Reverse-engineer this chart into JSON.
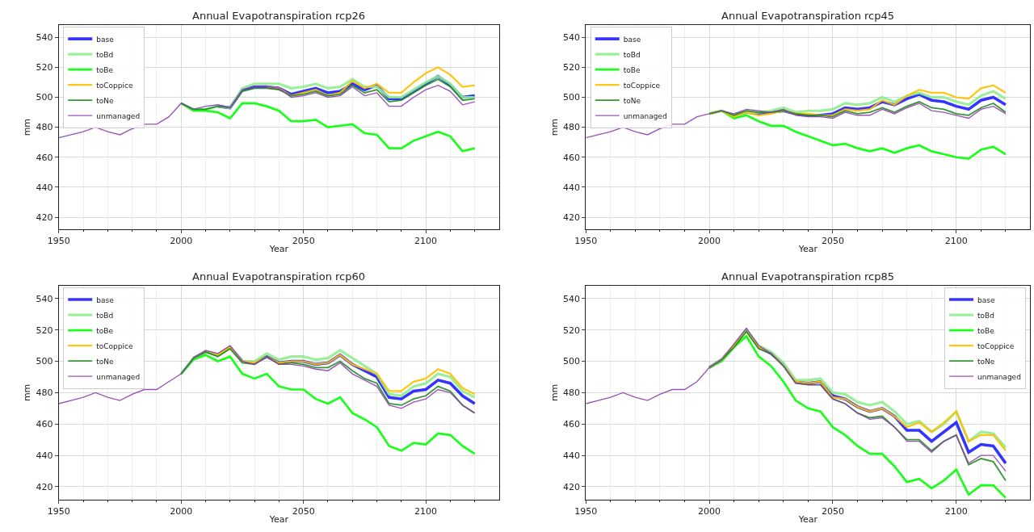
{
  "chart_data": [
    {
      "type": "line",
      "title": "Annual Evapotranspiration rcp26",
      "xlabel": "Year",
      "ylabel": "mm",
      "x": [
        1950,
        1955,
        1960,
        1965,
        1970,
        1975,
        1980,
        1985,
        1990,
        1995,
        2000,
        2005,
        2010,
        2015,
        2020,
        2025,
        2030,
        2035,
        2040,
        2045,
        2050,
        2055,
        2060,
        2065,
        2070,
        2075,
        2080,
        2085,
        2090,
        2095,
        2100,
        2105,
        2110,
        2115,
        2120
      ],
      "xlim": [
        1950,
        2130
      ],
      "xticks": [
        1950,
        {
          "value": 1960,
          "label": null
        },
        {
          "value": 1970,
          "label": null
        },
        {
          "value": 1980,
          "label": null
        },
        {
          "value": 1990,
          "label": null
        },
        2000,
        {
          "value": 2010,
          "label": null
        },
        {
          "value": 2020,
          "label": null
        },
        {
          "value": 2030,
          "label": null
        },
        {
          "value": 2040,
          "label": null
        },
        2050,
        {
          "value": 2060,
          "label": null
        },
        {
          "value": 2070,
          "label": null
        },
        {
          "value": 2080,
          "label": null
        },
        {
          "value": 2090,
          "label": null
        },
        2100,
        {
          "value": 2110,
          "label": null
        },
        {
          "value": 2120,
          "label": null
        }
      ],
      "ylim": [
        412,
        548
      ],
      "yticks": [
        420,
        440,
        460,
        480,
        500,
        520,
        540
      ],
      "grid": true,
      "legend": "top left",
      "marker": "none",
      "line_style": "solid",
      "series": [
        {
          "name": "base",
          "color": "#1f1fff",
          "values": [
            null,
            null,
            null,
            null,
            null,
            null,
            null,
            null,
            null,
            null,
            null,
            null,
            null,
            494,
            493,
            505,
            507,
            507,
            506,
            502,
            504,
            506,
            503,
            504,
            509,
            505,
            508,
            499,
            499,
            504,
            509,
            514,
            508,
            500,
            501
          ]
        },
        {
          "name": "toBd",
          "color": "#90ee90",
          "values": [
            null,
            null,
            null,
            null,
            null,
            null,
            null,
            null,
            null,
            null,
            496,
            492,
            492,
            494,
            493,
            506,
            509,
            509,
            509,
            506,
            507,
            509,
            506,
            507,
            512,
            507,
            507,
            500,
            500,
            505,
            510,
            514,
            509,
            500,
            500
          ]
        },
        {
          "name": "toBe",
          "color": "#00ff00",
          "values": [
            null,
            null,
            null,
            null,
            null,
            null,
            null,
            null,
            null,
            null,
            496,
            491,
            491,
            490,
            486,
            496,
            496,
            494,
            491,
            484,
            484,
            485,
            480,
            481,
            482,
            476,
            475,
            466,
            466,
            471,
            474,
            477,
            474,
            464,
            466
          ]
        },
        {
          "name": "toCoppice",
          "color": "#ffc000",
          "values": [
            null,
            null,
            null,
            null,
            null,
            null,
            null,
            null,
            null,
            null,
            null,
            null,
            null,
            null,
            null,
            null,
            null,
            507,
            506,
            501,
            503,
            505,
            501,
            503,
            511,
            506,
            509,
            503,
            503,
            510,
            516,
            520,
            515,
            507,
            508
          ]
        },
        {
          "name": "toNe",
          "color": "#228b22",
          "values": [
            null,
            null,
            null,
            null,
            null,
            null,
            null,
            null,
            null,
            null,
            496,
            492,
            492,
            494,
            493,
            504,
            506,
            506,
            505,
            501,
            502,
            504,
            501,
            502,
            508,
            503,
            505,
            497,
            498,
            503,
            508,
            512,
            507,
            498,
            499
          ]
        },
        {
          "name": "unmanaged",
          "color": "#8e3fb0",
          "values": [
            473,
            475,
            477,
            480,
            477,
            475,
            479,
            482,
            482,
            487,
            496,
            492,
            494,
            495,
            493,
            505,
            507,
            507,
            506,
            500,
            501,
            503,
            500,
            501,
            507,
            501,
            503,
            494,
            494,
            500,
            505,
            508,
            504,
            495,
            497
          ]
        }
      ]
    },
    {
      "type": "line",
      "title": "Annual Evapotranspiration rcp45",
      "xlabel": "Year",
      "ylabel": "mm",
      "x": [
        1950,
        1955,
        1960,
        1965,
        1970,
        1975,
        1980,
        1985,
        1990,
        1995,
        2000,
        2005,
        2010,
        2015,
        2020,
        2025,
        2030,
        2035,
        2040,
        2045,
        2050,
        2055,
        2060,
        2065,
        2070,
        2075,
        2080,
        2085,
        2090,
        2095,
        2100,
        2105,
        2110,
        2115,
        2120
      ],
      "xlim": [
        1950,
        2130
      ],
      "xticks": [
        1950,
        {
          "value": 1960,
          "label": null
        },
        {
          "value": 1970,
          "label": null
        },
        {
          "value": 1980,
          "label": null
        },
        {
          "value": 1990,
          "label": null
        },
        2000,
        {
          "value": 2010,
          "label": null
        },
        {
          "value": 2020,
          "label": null
        },
        {
          "value": 2030,
          "label": null
        },
        {
          "value": 2040,
          "label": null
        },
        2050,
        {
          "value": 2060,
          "label": null
        },
        {
          "value": 2070,
          "label": null
        },
        {
          "value": 2080,
          "label": null
        },
        {
          "value": 2090,
          "label": null
        },
        2100,
        {
          "value": 2110,
          "label": null
        },
        {
          "value": 2120,
          "label": null
        }
      ],
      "ylim": [
        412,
        548
      ],
      "yticks": [
        420,
        440,
        460,
        480,
        500,
        520,
        540
      ],
      "grid": true,
      "legend": "top left",
      "marker": "none",
      "line_style": "solid",
      "series": [
        {
          "name": "base",
          "color": "#1f1fff",
          "values": [
            null,
            null,
            null,
            null,
            null,
            null,
            null,
            null,
            null,
            null,
            null,
            null,
            488,
            490,
            489,
            490,
            491,
            489,
            488,
            488,
            489,
            493,
            492,
            493,
            497,
            495,
            499,
            502,
            498,
            497,
            494,
            492,
            498,
            500,
            495
          ]
        },
        {
          "name": "toBd",
          "color": "#90ee90",
          "values": [
            null,
            null,
            null,
            null,
            null,
            null,
            null,
            null,
            null,
            null,
            489,
            491,
            488,
            490,
            490,
            491,
            493,
            490,
            491,
            491,
            492,
            496,
            495,
            496,
            500,
            497,
            501,
            503,
            500,
            500,
            497,
            495,
            501,
            504,
            499
          ]
        },
        {
          "name": "toBe",
          "color": "#00ff00",
          "values": [
            null,
            null,
            null,
            null,
            null,
            null,
            null,
            null,
            null,
            null,
            489,
            491,
            486,
            488,
            484,
            481,
            481,
            477,
            474,
            471,
            468,
            469,
            466,
            464,
            466,
            463,
            466,
            468,
            464,
            462,
            460,
            459,
            465,
            467,
            462
          ]
        },
        {
          "name": "toCoppice",
          "color": "#ffc000",
          "values": [
            null,
            null,
            null,
            null,
            null,
            null,
            null,
            null,
            null,
            null,
            489,
            491,
            487,
            490,
            488,
            489,
            491,
            489,
            489,
            488,
            488,
            492,
            491,
            492,
            498,
            495,
            501,
            505,
            503,
            503,
            500,
            499,
            506,
            508,
            503
          ]
        },
        {
          "name": "toNe",
          "color": "#228b22",
          "values": [
            null,
            null,
            null,
            null,
            null,
            null,
            null,
            null,
            null,
            null,
            489,
            491,
            488,
            491,
            490,
            490,
            491,
            489,
            488,
            488,
            487,
            491,
            489,
            490,
            493,
            490,
            494,
            497,
            493,
            492,
            489,
            488,
            493,
            496,
            490
          ]
        },
        {
          "name": "unmanaged",
          "color": "#8e3fb0",
          "values": [
            473,
            475,
            477,
            480,
            477,
            475,
            479,
            482,
            482,
            487,
            489,
            491,
            489,
            492,
            491,
            490,
            492,
            488,
            487,
            487,
            486,
            490,
            488,
            488,
            492,
            489,
            493,
            496,
            491,
            490,
            488,
            486,
            492,
            494,
            489
          ]
        }
      ]
    },
    {
      "type": "line",
      "title": "Annual Evapotranspiration rcp60",
      "xlabel": "Year",
      "ylabel": "mm",
      "x": [
        1950,
        1955,
        1960,
        1965,
        1970,
        1975,
        1980,
        1985,
        1990,
        1995,
        2000,
        2005,
        2010,
        2015,
        2020,
        2025,
        2030,
        2035,
        2040,
        2045,
        2050,
        2055,
        2060,
        2065,
        2070,
        2075,
        2080,
        2085,
        2090,
        2095,
        2100,
        2105,
        2110,
        2115,
        2120
      ],
      "xlim": [
        1950,
        2130
      ],
      "xticks": [
        1950,
        {
          "value": 1960,
          "label": null
        },
        {
          "value": 1970,
          "label": null
        },
        {
          "value": 1980,
          "label": null
        },
        {
          "value": 1990,
          "label": null
        },
        2000,
        {
          "value": 2010,
          "label": null
        },
        {
          "value": 2020,
          "label": null
        },
        {
          "value": 2030,
          "label": null
        },
        {
          "value": 2040,
          "label": null
        },
        2050,
        {
          "value": 2060,
          "label": null
        },
        {
          "value": 2070,
          "label": null
        },
        {
          "value": 2080,
          "label": null
        },
        {
          "value": 2090,
          "label": null
        },
        2100,
        {
          "value": 2110,
          "label": null
        },
        {
          "value": 2120,
          "label": null
        }
      ],
      "ylim": [
        412,
        548
      ],
      "yticks": [
        420,
        440,
        460,
        480,
        500,
        520,
        540
      ],
      "grid": true,
      "legend": "top left",
      "marker": "none",
      "line_style": "solid",
      "series": [
        {
          "name": "base",
          "color": "#1f1fff",
          "values": [
            null,
            null,
            null,
            null,
            null,
            null,
            null,
            null,
            null,
            null,
            null,
            502,
            506,
            504,
            509,
            500,
            499,
            503,
            499,
            500,
            500,
            498,
            499,
            504,
            498,
            494,
            490,
            477,
            476,
            481,
            482,
            488,
            486,
            478,
            473
          ]
        },
        {
          "name": "toBd",
          "color": "#90ee90",
          "values": [
            null,
            null,
            null,
            null,
            null,
            null,
            null,
            null,
            null,
            null,
            492,
            502,
            506,
            504,
            509,
            500,
            500,
            505,
            501,
            503,
            503,
            501,
            502,
            507,
            502,
            497,
            492,
            479,
            478,
            484,
            486,
            492,
            490,
            481,
            477
          ]
        },
        {
          "name": "toBe",
          "color": "#00ff00",
          "values": [
            null,
            null,
            null,
            null,
            null,
            null,
            null,
            null,
            null,
            null,
            492,
            501,
            504,
            500,
            503,
            492,
            489,
            492,
            484,
            482,
            482,
            476,
            473,
            477,
            467,
            463,
            458,
            446,
            443,
            448,
            447,
            454,
            453,
            446,
            441
          ]
        },
        {
          "name": "toCoppice",
          "color": "#ffc000",
          "values": [
            null,
            null,
            null,
            null,
            null,
            null,
            null,
            null,
            null,
            null,
            null,
            502,
            506,
            504,
            509,
            500,
            499,
            503,
            499,
            500,
            500,
            498,
            499,
            504,
            498,
            495,
            492,
            481,
            481,
            487,
            489,
            495,
            492,
            483,
            479
          ]
        },
        {
          "name": "toNe",
          "color": "#228b22",
          "values": [
            null,
            null,
            null,
            null,
            null,
            null,
            null,
            null,
            null,
            null,
            492,
            502,
            506,
            503,
            508,
            499,
            498,
            503,
            498,
            499,
            498,
            496,
            496,
            500,
            494,
            489,
            486,
            473,
            472,
            476,
            478,
            484,
            481,
            472,
            467
          ]
        },
        {
          "name": "unmanaged",
          "color": "#8e3fb0",
          "values": [
            473,
            475,
            477,
            480,
            477,
            475,
            479,
            482,
            482,
            487,
            492,
            502,
            507,
            505,
            510,
            500,
            498,
            503,
            498,
            498,
            497,
            495,
            494,
            499,
            492,
            488,
            484,
            472,
            470,
            474,
            476,
            482,
            480,
            472,
            467
          ]
        }
      ]
    },
    {
      "type": "line",
      "title": "Annual Evapotranspiration rcp85",
      "xlabel": "Year",
      "ylabel": "mm",
      "x": [
        1950,
        1955,
        1960,
        1965,
        1970,
        1975,
        1980,
        1985,
        1990,
        1995,
        2000,
        2005,
        2010,
        2015,
        2020,
        2025,
        2030,
        2035,
        2040,
        2045,
        2050,
        2055,
        2060,
        2065,
        2070,
        2075,
        2080,
        2085,
        2090,
        2095,
        2100,
        2105,
        2110,
        2115,
        2120
      ],
      "xlim": [
        1950,
        2130
      ],
      "xticks": [
        1950,
        {
          "value": 1960,
          "label": null
        },
        {
          "value": 1970,
          "label": null
        },
        {
          "value": 1980,
          "label": null
        },
        {
          "value": 1990,
          "label": null
        },
        2000,
        {
          "value": 2010,
          "label": null
        },
        {
          "value": 2020,
          "label": null
        },
        {
          "value": 2030,
          "label": null
        },
        {
          "value": 2040,
          "label": null
        },
        2050,
        {
          "value": 2060,
          "label": null
        },
        {
          "value": 2070,
          "label": null
        },
        {
          "value": 2080,
          "label": null
        },
        {
          "value": 2090,
          "label": null
        },
        2100,
        {
          "value": 2110,
          "label": null
        },
        {
          "value": 2120,
          "label": null
        }
      ],
      "ylim": [
        412,
        548
      ],
      "yticks": [
        420,
        440,
        460,
        480,
        500,
        520,
        540
      ],
      "grid": true,
      "legend": "top right",
      "marker": "none",
      "line_style": "solid",
      "series": [
        {
          "name": "base",
          "color": "#1f1fff",
          "values": [
            null,
            null,
            null,
            null,
            null,
            null,
            null,
            null,
            null,
            null,
            496,
            501,
            510,
            520,
            509,
            505,
            498,
            487,
            486,
            487,
            478,
            476,
            471,
            468,
            470,
            465,
            456,
            456,
            449,
            455,
            461,
            442,
            447,
            446,
            435
          ]
        },
        {
          "name": "toBd",
          "color": "#90ee90",
          "values": [
            null,
            null,
            null,
            null,
            null,
            null,
            null,
            null,
            null,
            null,
            496,
            501,
            510,
            520,
            510,
            506,
            499,
            488,
            488,
            489,
            480,
            479,
            474,
            472,
            474,
            468,
            460,
            462,
            455,
            460,
            468,
            449,
            455,
            454,
            445
          ]
        },
        {
          "name": "toBe",
          "color": "#00ff00",
          "values": [
            null,
            null,
            null,
            null,
            null,
            null,
            null,
            null,
            null,
            null,
            496,
            500,
            509,
            516,
            503,
            497,
            487,
            475,
            470,
            468,
            458,
            453,
            446,
            441,
            441,
            433,
            423,
            425,
            419,
            424,
            431,
            415,
            421,
            421,
            413
          ]
        },
        {
          "name": "toCoppice",
          "color": "#ffc000",
          "values": [
            null,
            null,
            null,
            null,
            null,
            null,
            null,
            null,
            null,
            null,
            496,
            501,
            510,
            519,
            509,
            505,
            497,
            487,
            486,
            487,
            477,
            476,
            471,
            468,
            470,
            465,
            458,
            461,
            455,
            461,
            468,
            449,
            453,
            453,
            443
          ]
        },
        {
          "name": "toNe",
          "color": "#228b22",
          "values": [
            null,
            null,
            null,
            null,
            null,
            null,
            null,
            null,
            null,
            null,
            496,
            501,
            509,
            519,
            508,
            505,
            497,
            486,
            485,
            485,
            476,
            473,
            467,
            464,
            465,
            458,
            450,
            450,
            443,
            449,
            453,
            434,
            438,
            436,
            424
          ]
        },
        {
          "name": "unmanaged",
          "color": "#8e3fb0",
          "values": [
            473,
            475,
            477,
            480,
            477,
            475,
            479,
            482,
            482,
            487,
            496,
            501,
            511,
            521,
            510,
            505,
            497,
            486,
            485,
            485,
            476,
            473,
            467,
            463,
            464,
            458,
            449,
            449,
            442,
            449,
            453,
            435,
            440,
            440,
            430
          ]
        }
      ]
    }
  ]
}
